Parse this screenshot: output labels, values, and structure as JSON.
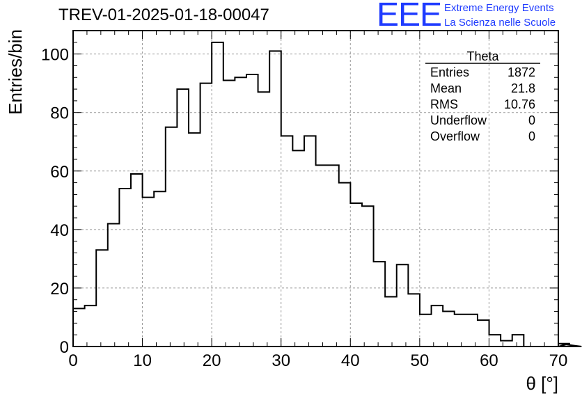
{
  "header": {
    "title": "TREV-01-2025-01-18-00047",
    "logo_mark": "EEE",
    "logo_line1": "Extreme Energy Events",
    "logo_line2": "La Scienza nelle Scuole"
  },
  "colors": {
    "logo": "#1f3bff",
    "histogram_line": "#000000",
    "grid": "#9a9a9a"
  },
  "chart_data": {
    "type": "histogram",
    "xlabel": "θ [°]",
    "ylabel": "Entries/bin",
    "xlim": [
      0,
      70
    ],
    "ylim": [
      0,
      108
    ],
    "x_ticks": [
      0,
      10,
      20,
      30,
      40,
      50,
      60,
      70
    ],
    "y_ticks": [
      0,
      20,
      40,
      60,
      80,
      100
    ],
    "grid": true,
    "bin_width": 1.667,
    "values": [
      13,
      14,
      33,
      42,
      54,
      59,
      51,
      53,
      75,
      88,
      73,
      90,
      104,
      91,
      92,
      93,
      87,
      101,
      72,
      67,
      72,
      62,
      62,
      56,
      49,
      48,
      29,
      17,
      28,
      18,
      11,
      14,
      12,
      11,
      11,
      9,
      4,
      2,
      4,
      0,
      0,
      0,
      0,
      1,
      0
    ],
    "stats": {
      "title": "Theta",
      "rows": [
        {
          "label": "Entries",
          "value": "1872"
        },
        {
          "label": "Mean",
          "value": "21.8"
        },
        {
          "label": "RMS",
          "value": "10.76"
        },
        {
          "label": "Underflow",
          "value": "0"
        },
        {
          "label": "Overflow",
          "value": "0"
        }
      ]
    }
  }
}
